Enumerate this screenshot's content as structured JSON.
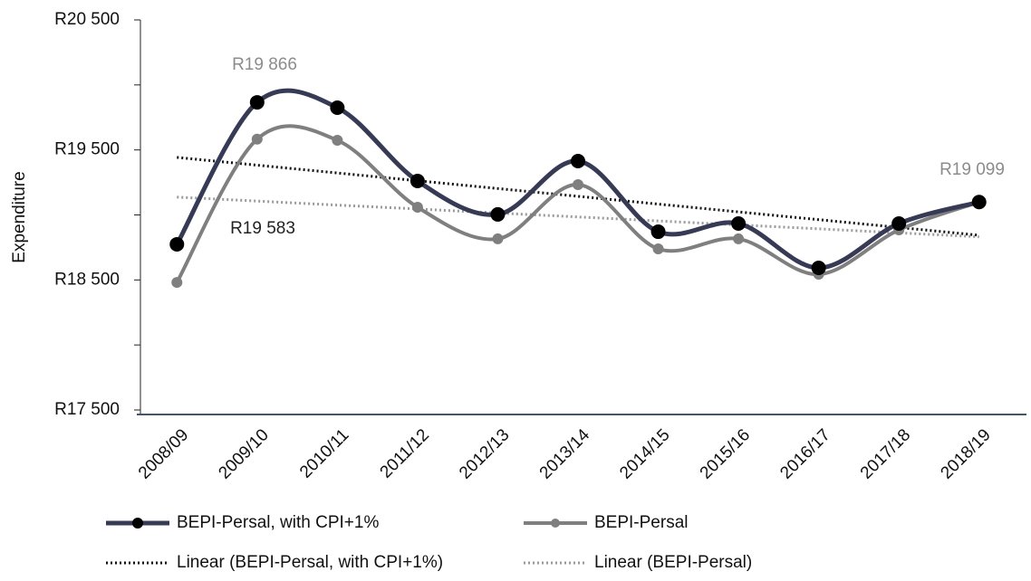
{
  "chart_data": {
    "type": "line",
    "y_label": "Expenditure",
    "categories": [
      "2008/09",
      "2009/10",
      "2010/11",
      "2011/12",
      "2012/13",
      "2013/14",
      "2014/15",
      "2015/16",
      "2016/17",
      "2017/18",
      "2018/19"
    ],
    "series": [
      {
        "name": "BEPI-Persal, with CPI+1%",
        "color": "#363a55",
        "values": [
          18774,
          19866,
          19825,
          19261,
          19004,
          19414,
          18871,
          18934,
          18593,
          18934,
          19099
        ]
      },
      {
        "name": "BEPI-Persal",
        "color": "#7f7f7f",
        "values": [
          18481,
          19583,
          19574,
          19059,
          18816,
          19233,
          18739,
          18816,
          18544,
          18885,
          19099
        ]
      }
    ],
    "trendlines": [
      {
        "name": "Linear (BEPI-Persal, with CPI+1%)",
        "color": "#111111"
      },
      {
        "name": "Linear (BEPI-Persal)",
        "color": "#9a9a9a"
      }
    ],
    "annotations": [
      {
        "text": "R19 866",
        "color": "#8c8c8c"
      },
      {
        "text": "R19 583",
        "color": "#222222"
      },
      {
        "text": "R19 099",
        "color": "#8c8c8c"
      }
    ],
    "ylim": [
      17500,
      20500
    ],
    "yticks": [
      {
        "value": 17500,
        "label": "R17 500"
      },
      {
        "value": 18000,
        "label": ""
      },
      {
        "value": 18500,
        "label": "R18 500"
      },
      {
        "value": 19000,
        "label": ""
      },
      {
        "value": 19500,
        "label": "R19 500"
      },
      {
        "value": 20000,
        "label": ""
      },
      {
        "value": 20500,
        "label": "R20 500"
      }
    ],
    "grid": false
  }
}
